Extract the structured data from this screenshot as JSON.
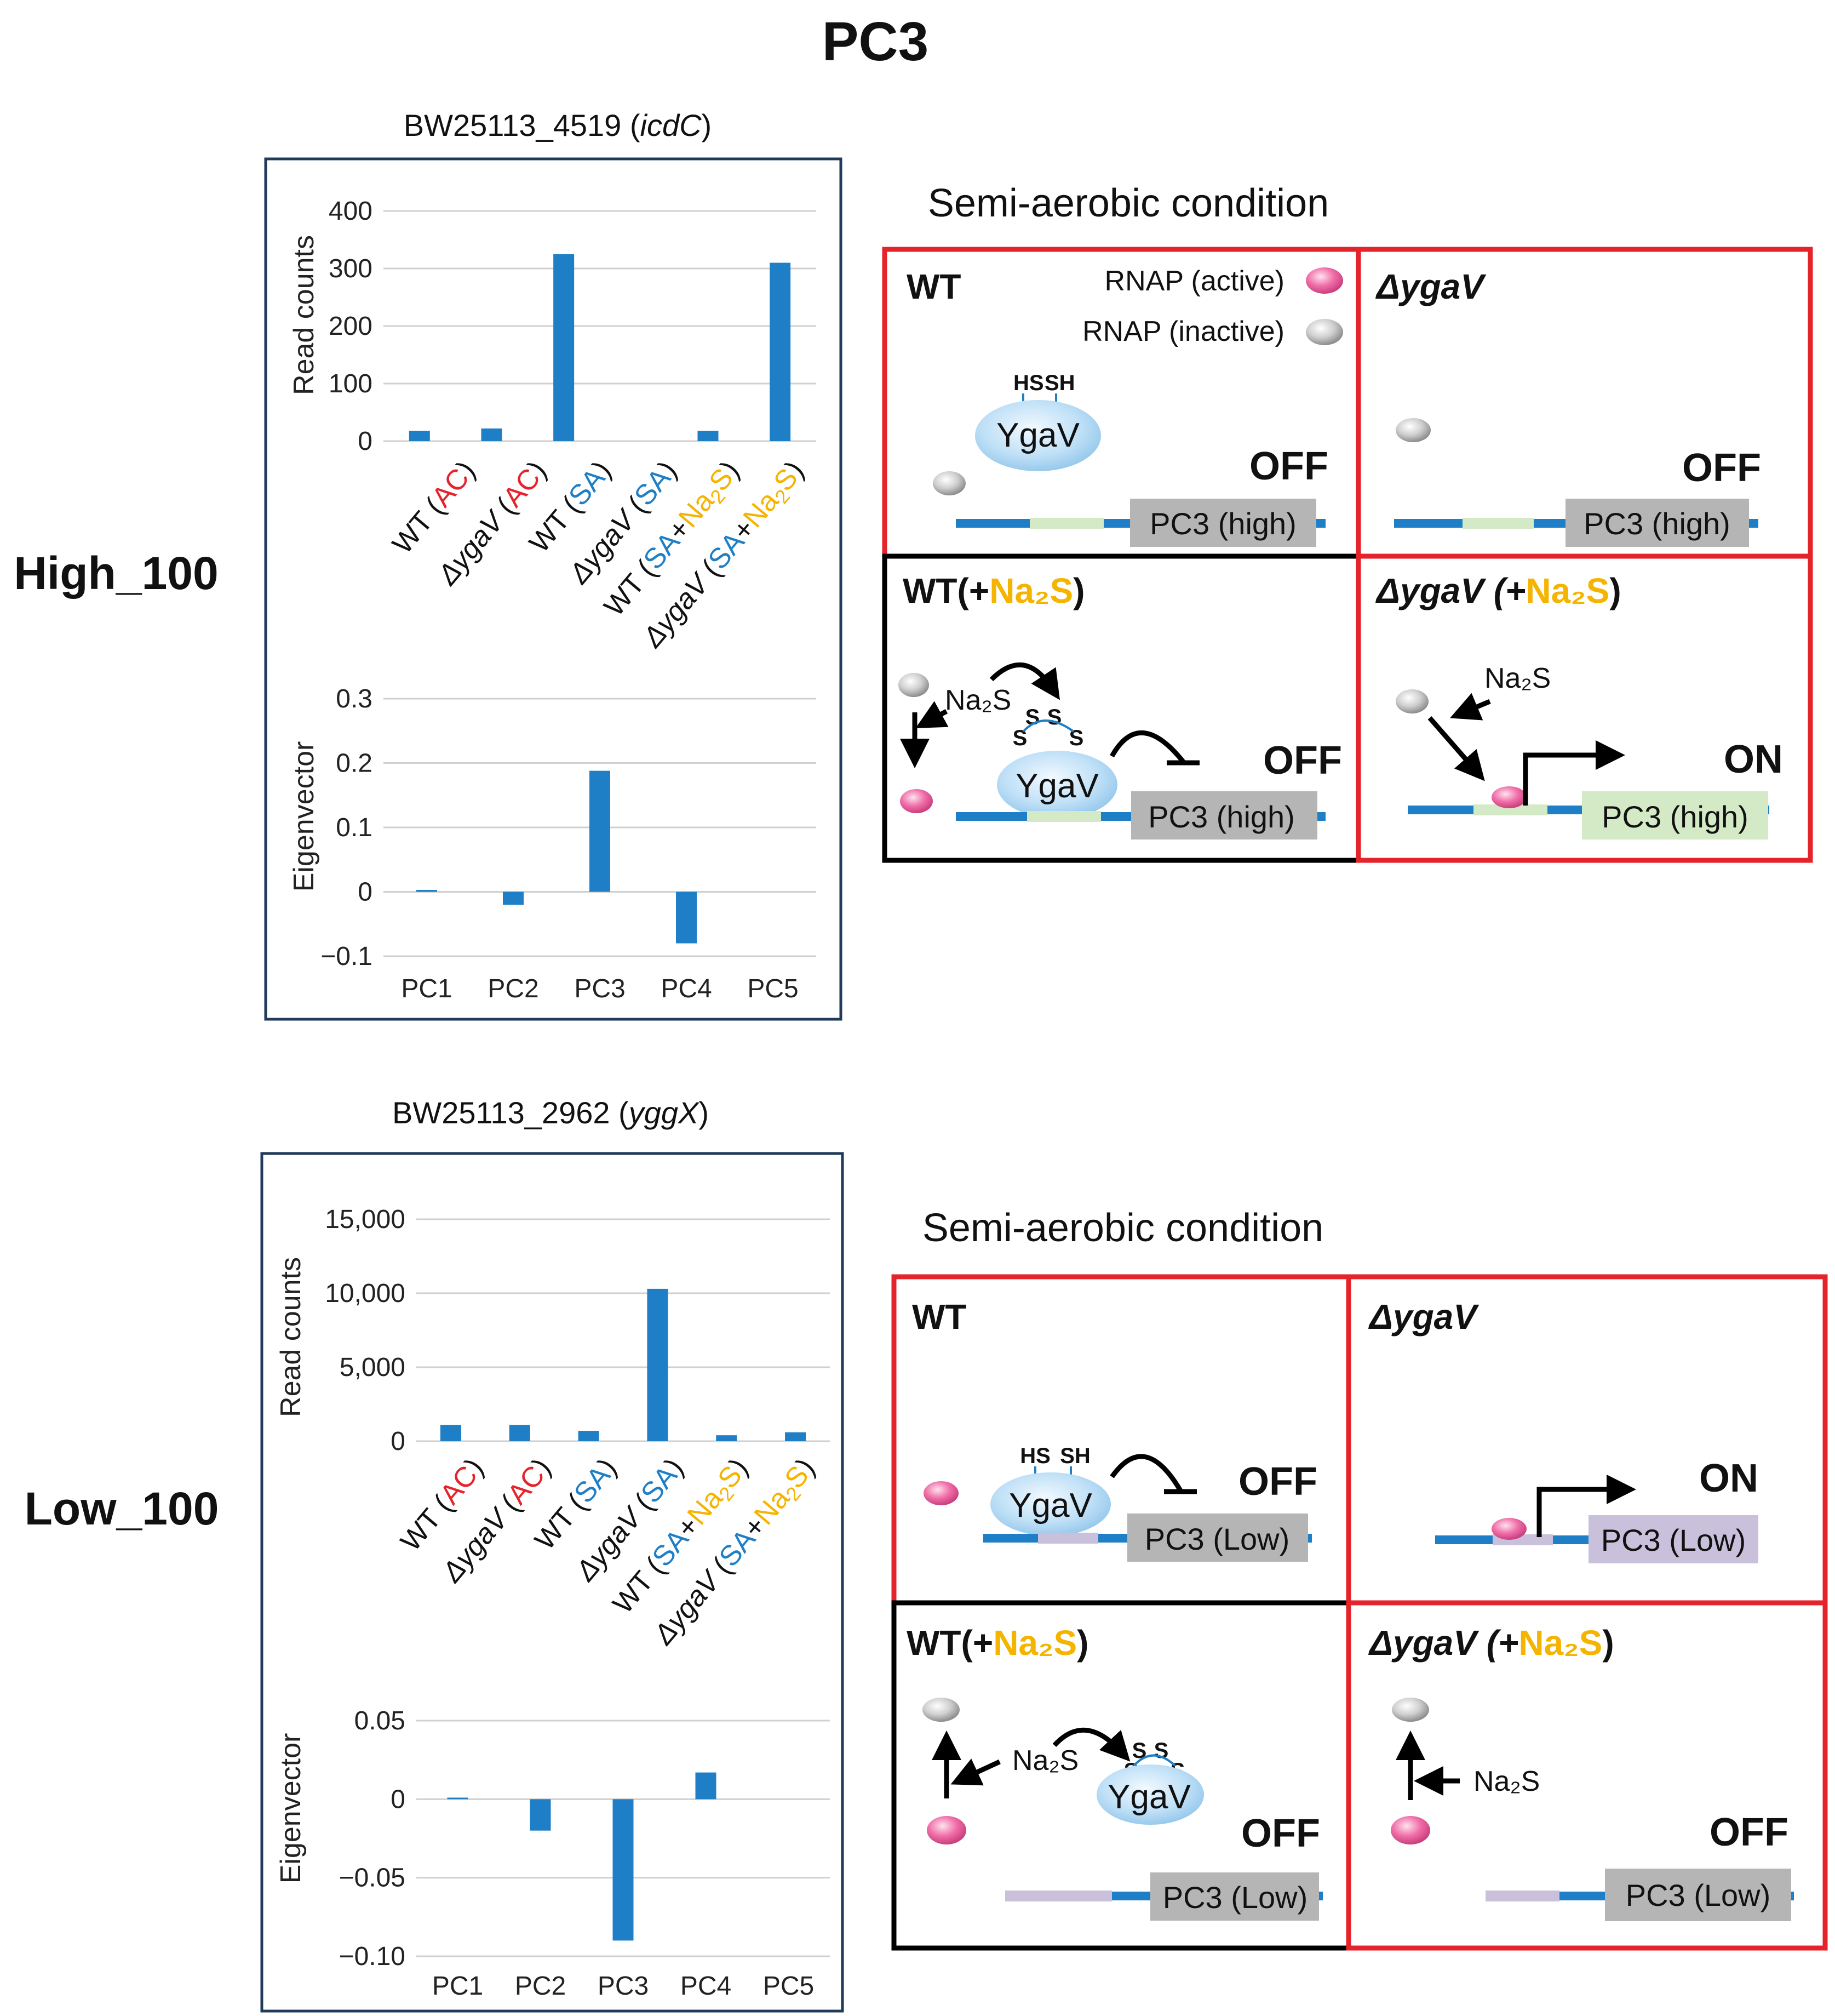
{
  "page_title": "PC3",
  "colors": {
    "bar": "#1f7fc6",
    "red": "#e4232b",
    "blue": "#1f7fc6",
    "yellow": "#f5b400",
    "pink": "#f06ea8",
    "gene_high": "#b5b5b5",
    "gene_low_promoter": "#c9c0dc"
  },
  "sections": [
    {
      "row_label": "High_100",
      "gene_title": {
        "prefix": "BW25113_4519 (",
        "gene": "icdC",
        "suffix": ")"
      },
      "diagram_title": "Semi-aerobic condition",
      "panel_labels": {
        "wt": "WT",
        "dygav": "ΔygaV",
        "wt_na2s_prefix": "WT(+",
        "dygav_na2s_prefix": "ΔygaV (+",
        "na2s": "Na₂S",
        "close": ")"
      },
      "legend": {
        "active": "RNAP (active)",
        "inactive": "RNAP (inactive)"
      },
      "states": {
        "wt": "OFF",
        "dygav": "OFF",
        "wt_na2s": "OFF",
        "dygav_na2s": "ON"
      },
      "gene_box": "PC3 (high)",
      "ygav": "YgaV",
      "thiol": {
        "hs": "HS",
        "sh": "SH",
        "s": "S"
      },
      "na2s_reagent": "Na₂S"
    },
    {
      "row_label": "Low_100",
      "gene_title": {
        "prefix": "BW25113_2962 (",
        "gene": "yggX",
        "suffix": ")"
      },
      "diagram_title": "Semi-aerobic condition",
      "panel_labels": {
        "wt": "WT",
        "dygav": "ΔygaV",
        "wt_na2s_prefix": "WT(+",
        "dygav_na2s_prefix": "ΔygaV (+",
        "na2s": "Na₂S",
        "close": ")"
      },
      "states": {
        "wt": "OFF",
        "dygav": "ON",
        "wt_na2s": "OFF",
        "dygav_na2s": "OFF"
      },
      "gene_box": "PC3 (Low)",
      "ygav": "YgaV",
      "thiol": {
        "hs": "HS",
        "sh": "SH",
        "s": "S"
      },
      "na2s_reagent": "Na₂S"
    }
  ],
  "chart_data": [
    {
      "type": "bar",
      "title": "BW25113_4519 (icdC)",
      "ylabel": "Read counts",
      "xlabel": "",
      "categories": [
        "WT (AC)",
        "ΔygaV (AC)",
        "WT (SA)",
        "ΔygaV (SA)",
        "WT (SA+Na2S)",
        "ΔygaV (SA+Na2S)"
      ],
      "values": [
        18,
        22,
        325,
        0,
        18,
        310
      ],
      "ylim": [
        0,
        400
      ],
      "yticks": [
        "400",
        "300",
        "200",
        "100",
        "0"
      ],
      "ytick_values": [
        400,
        300,
        200,
        100,
        0
      ]
    },
    {
      "type": "bar",
      "title": "",
      "ylabel": "Eigenvector",
      "xlabel": "",
      "categories": [
        "PC1",
        "PC2",
        "PC3",
        "PC4",
        "PC5"
      ],
      "values": [
        0.003,
        -0.02,
        0.188,
        -0.08,
        0
      ],
      "ylim": [
        -0.1,
        0.3
      ],
      "yticks": [
        "0.3",
        "0.2",
        "0.1",
        "0",
        "−0.1"
      ],
      "ytick_values": [
        0.3,
        0.2,
        0.1,
        0,
        -0.1
      ]
    },
    {
      "type": "bar",
      "title": "BW25113_2962 (yggX)",
      "ylabel": "Read counts",
      "xlabel": "",
      "categories": [
        "WT (AC)",
        "ΔygaV (AC)",
        "WT (SA)",
        "ΔygaV (SA)",
        "WT (SA+Na2S)",
        "ΔygaV (SA+Na2S)"
      ],
      "values": [
        1100,
        1100,
        700,
        10300,
        400,
        600
      ],
      "ylim": [
        0,
        15000
      ],
      "yticks": [
        "15,000",
        "10,000",
        "5,000",
        "0"
      ],
      "ytick_values": [
        15000,
        10000,
        5000,
        0
      ]
    },
    {
      "type": "bar",
      "title": "",
      "ylabel": "Eigenvector",
      "xlabel": "",
      "categories": [
        "PC1",
        "PC2",
        "PC3",
        "PC4",
        "PC5"
      ],
      "values": [
        0.001,
        -0.02,
        -0.09,
        0.017,
        0
      ],
      "ylim": [
        -0.1,
        0.05
      ],
      "yticks": [
        "0.05",
        "0",
        "−0.05",
        "−0.10"
      ],
      "ytick_values": [
        0.05,
        0,
        -0.05,
        -0.1
      ]
    }
  ]
}
